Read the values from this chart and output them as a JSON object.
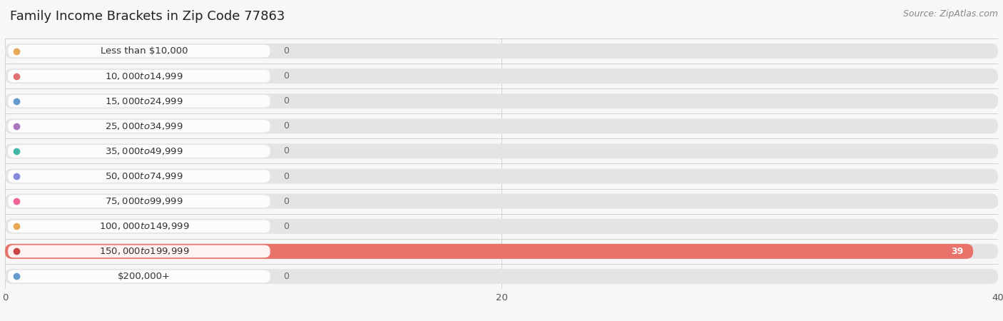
{
  "title": "Family Income Brackets in Zip Code 77863",
  "source": "Source: ZipAtlas.com",
  "categories": [
    "Less than $10,000",
    "$10,000 to $14,999",
    "$15,000 to $24,999",
    "$25,000 to $34,999",
    "$35,000 to $49,999",
    "$50,000 to $74,999",
    "$75,000 to $99,999",
    "$100,000 to $149,999",
    "$150,000 to $199,999",
    "$200,000+"
  ],
  "values": [
    0,
    0,
    0,
    0,
    0,
    0,
    0,
    0,
    39,
    0
  ],
  "bar_colors": [
    "#f5c99a",
    "#f0a0a0",
    "#a8c4e0",
    "#c9aed6",
    "#7ecfc0",
    "#b0b8e8",
    "#f4a0b8",
    "#f5c99a",
    "#e8736a",
    "#a8c4e0"
  ],
  "dot_colors": [
    "#e8a855",
    "#e07070",
    "#6699cc",
    "#aa77bb",
    "#44b8a8",
    "#8888dd",
    "#ee6699",
    "#e8a855",
    "#cc4444",
    "#6699cc"
  ],
  "background_color": "#f7f7f7",
  "plot_bg_color": "#f7f7f7",
  "xlim": [
    0,
    40
  ],
  "xticks": [
    0,
    20,
    40
  ],
  "title_fontsize": 13,
  "label_fontsize": 9.5,
  "value_fontsize": 9,
  "source_fontsize": 9
}
